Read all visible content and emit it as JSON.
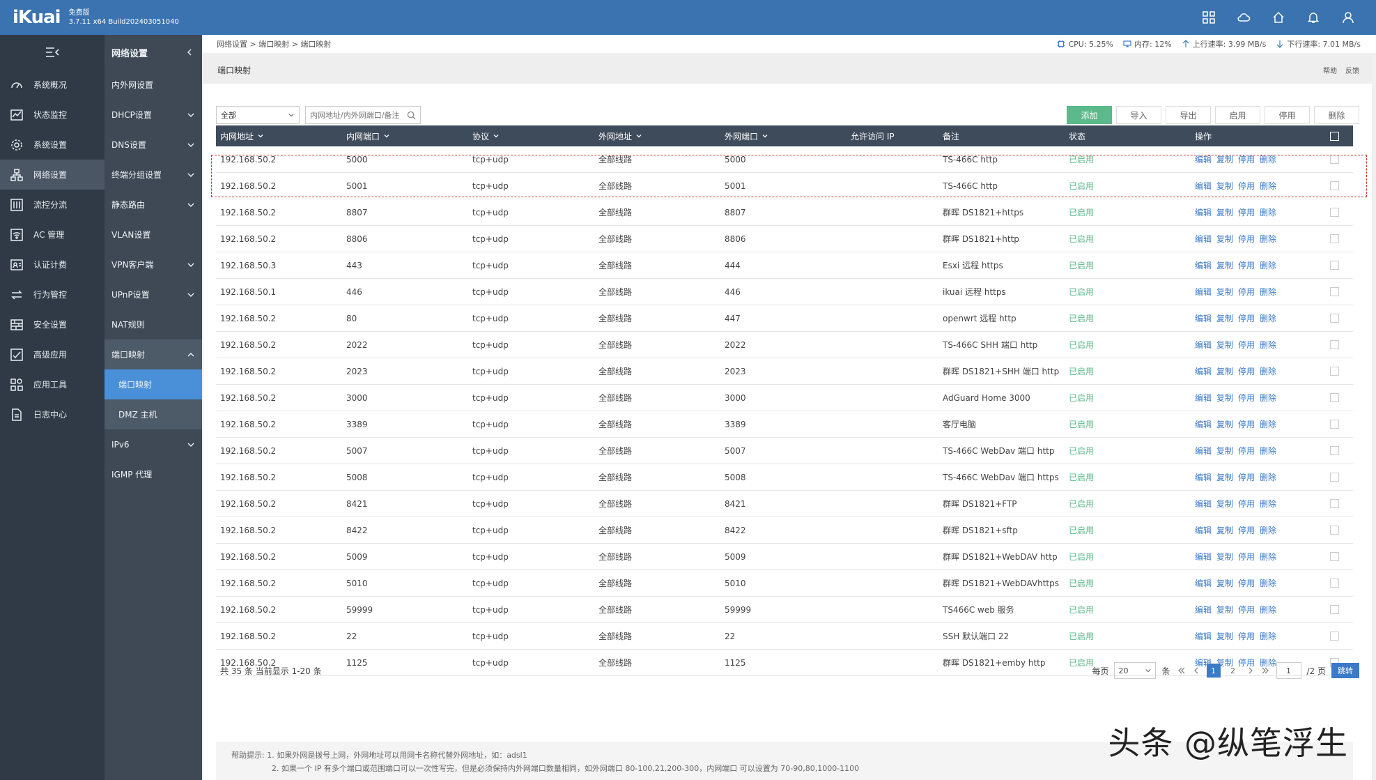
{
  "header": {
    "logo": "iKuai",
    "edition": "免费版",
    "version": "3.7.11 x64 Build202403051040",
    "icons": [
      "grid-icon",
      "cloud-icon",
      "home-icon",
      "bell-icon",
      "user-icon"
    ]
  },
  "sidebar": {
    "items": [
      {
        "label": "系统概况",
        "icon": "dashboard-icon"
      },
      {
        "label": "状态监控",
        "icon": "monitor-icon"
      },
      {
        "label": "系统设置",
        "icon": "gear-icon"
      },
      {
        "label": "网络设置",
        "icon": "network-icon"
      },
      {
        "label": "流控分流",
        "icon": "sliders-icon"
      },
      {
        "label": "AC 管理",
        "icon": "wifi-icon"
      },
      {
        "label": "认证计费",
        "icon": "id-card-icon"
      },
      {
        "label": "行为管控",
        "icon": "exchange-icon"
      },
      {
        "label": "安全设置",
        "icon": "firewall-icon"
      },
      {
        "label": "高级应用",
        "icon": "app-icon"
      },
      {
        "label": "应用工具",
        "icon": "tools-icon"
      },
      {
        "label": "日志中心",
        "icon": "log-icon"
      }
    ]
  },
  "subnav": {
    "title": "网络设置",
    "items": [
      {
        "label": "内外网设置"
      },
      {
        "label": "DHCP设置"
      },
      {
        "label": "DNS设置"
      },
      {
        "label": "终端分组设置"
      },
      {
        "label": "静态路由"
      },
      {
        "label": "VLAN设置"
      },
      {
        "label": "VPN客户端"
      },
      {
        "label": "UPnP设置"
      },
      {
        "label": "NAT规则"
      },
      {
        "label": "端口映射"
      },
      {
        "label": "端口映射"
      },
      {
        "label": "DMZ 主机"
      },
      {
        "label": "IPv6"
      },
      {
        "label": "IGMP 代理"
      }
    ]
  },
  "breadcrumb": "网络设置 > 端口映射 > 端口映射",
  "stats": {
    "cpu": "CPU: 5.25%",
    "mem": "内存: 12%",
    "up": "上行速率: 3.99 MB/s",
    "down": "下行速率: 7.01 MB/s"
  },
  "page": {
    "title": "端口映射",
    "help": "帮助",
    "feedback": "反馈"
  },
  "toolbar": {
    "filter_value": "全部",
    "search_placeholder": "内网地址/内外网端口/备注",
    "add": "添加",
    "import": "导入",
    "export": "导出",
    "enable": "启用",
    "disable": "停用",
    "delete": "删除"
  },
  "table": {
    "headers": [
      "内网地址",
      "内网端口",
      "协议",
      "外网地址",
      "外网端口",
      "允许访问 IP",
      "备注",
      "状态",
      "操作"
    ],
    "ops": [
      "编辑",
      "复制",
      "停用",
      "删除"
    ],
    "rows": [
      {
        "ip": "192.168.50.2",
        "lan_port": "5000",
        "proto": "tcp+udp",
        "wan": "全部线路",
        "wan_port": "5000",
        "allow": "",
        "note": "TS-466C http",
        "status": "已启用"
      },
      {
        "ip": "192.168.50.2",
        "lan_port": "5001",
        "proto": "tcp+udp",
        "wan": "全部线路",
        "wan_port": "5001",
        "allow": "",
        "note": "TS-466C http",
        "status": "已启用"
      },
      {
        "ip": "192.168.50.2",
        "lan_port": "8807",
        "proto": "tcp+udp",
        "wan": "全部线路",
        "wan_port": "8807",
        "allow": "",
        "note": "群晖 DS1821+https",
        "status": "已启用"
      },
      {
        "ip": "192.168.50.2",
        "lan_port": "8806",
        "proto": "tcp+udp",
        "wan": "全部线路",
        "wan_port": "8806",
        "allow": "",
        "note": "群晖 DS1821+http",
        "status": "已启用"
      },
      {
        "ip": "192.168.50.3",
        "lan_port": "443",
        "proto": "tcp+udp",
        "wan": "全部线路",
        "wan_port": "444",
        "allow": "",
        "note": "Esxi 远程 https",
        "status": "已启用"
      },
      {
        "ip": "192.168.50.1",
        "lan_port": "446",
        "proto": "tcp+udp",
        "wan": "全部线路",
        "wan_port": "446",
        "allow": "",
        "note": "ikuai 远程 https",
        "status": "已启用"
      },
      {
        "ip": "192.168.50.2",
        "lan_port": "80",
        "proto": "tcp+udp",
        "wan": "全部线路",
        "wan_port": "447",
        "allow": "",
        "note": "openwrt 远程 http",
        "status": "已启用"
      },
      {
        "ip": "192.168.50.2",
        "lan_port": "2022",
        "proto": "tcp+udp",
        "wan": "全部线路",
        "wan_port": "2022",
        "allow": "",
        "note": "TS-466C SHH 端口 http",
        "status": "已启用"
      },
      {
        "ip": "192.168.50.2",
        "lan_port": "2023",
        "proto": "tcp+udp",
        "wan": "全部线路",
        "wan_port": "2023",
        "allow": "",
        "note": "群晖 DS1821+SHH 端口 http",
        "status": "已启用"
      },
      {
        "ip": "192.168.50.2",
        "lan_port": "3000",
        "proto": "tcp+udp",
        "wan": "全部线路",
        "wan_port": "3000",
        "allow": "",
        "note": "AdGuard Home 3000",
        "status": "已启用"
      },
      {
        "ip": "192.168.50.2",
        "lan_port": "3389",
        "proto": "tcp+udp",
        "wan": "全部线路",
        "wan_port": "3389",
        "allow": "",
        "note": "客厅电脑",
        "status": "已启用"
      },
      {
        "ip": "192.168.50.2",
        "lan_port": "5007",
        "proto": "tcp+udp",
        "wan": "全部线路",
        "wan_port": "5007",
        "allow": "",
        "note": "TS-466C WebDav 端口 http",
        "status": "已启用"
      },
      {
        "ip": "192.168.50.2",
        "lan_port": "5008",
        "proto": "tcp+udp",
        "wan": "全部线路",
        "wan_port": "5008",
        "allow": "",
        "note": "TS-466C WebDav 端口 https",
        "status": "已启用"
      },
      {
        "ip": "192.168.50.2",
        "lan_port": "8421",
        "proto": "tcp+udp",
        "wan": "全部线路",
        "wan_port": "8421",
        "allow": "",
        "note": "群晖 DS1821+FTP",
        "status": "已启用"
      },
      {
        "ip": "192.168.50.2",
        "lan_port": "8422",
        "proto": "tcp+udp",
        "wan": "全部线路",
        "wan_port": "8422",
        "allow": "",
        "note": "群晖 DS1821+sftp",
        "status": "已启用"
      },
      {
        "ip": "192.168.50.2",
        "lan_port": "5009",
        "proto": "tcp+udp",
        "wan": "全部线路",
        "wan_port": "5009",
        "allow": "",
        "note": "群晖 DS1821+WebDAV http",
        "status": "已启用"
      },
      {
        "ip": "192.168.50.2",
        "lan_port": "5010",
        "proto": "tcp+udp",
        "wan": "全部线路",
        "wan_port": "5010",
        "allow": "",
        "note": "群晖 DS1821+WebDAVhttps",
        "status": "已启用"
      },
      {
        "ip": "192.168.50.2",
        "lan_port": "59999",
        "proto": "tcp+udp",
        "wan": "全部线路",
        "wan_port": "59999",
        "allow": "",
        "note": "TS466C web 服务",
        "status": "已启用"
      },
      {
        "ip": "192.168.50.2",
        "lan_port": "22",
        "proto": "tcp+udp",
        "wan": "全部线路",
        "wan_port": "22",
        "allow": "",
        "note": "SSH 默认端口 22",
        "status": "已启用"
      },
      {
        "ip": "192.168.50.2",
        "lan_port": "1125",
        "proto": "tcp+udp",
        "wan": "全部线路",
        "wan_port": "1125",
        "allow": "",
        "note": "群晖 DS1821+emby http",
        "status": "已启用"
      }
    ]
  },
  "footer": {
    "summary": "共 35 条 当前显示 1-20 条",
    "per_page_label": "每页",
    "per_page_value": "20",
    "per_page_unit": "条",
    "pages": [
      "1",
      "2"
    ],
    "current_page": "1",
    "goto_value": "1",
    "total_pages": "/2 页",
    "jump": "跳转"
  },
  "help": {
    "line1": "帮助提示: 1. 如果外网是拨号上网，外网地址可以用网卡名称代替外网地址，如：adsl1",
    "line2": "2. 如果一个 IP 有多个端口或范围端口可以一次性写完，但是必须保持内外网端口数量相同，如外网端口 80-100,21,200-300，内网端口 可以设置为 70-90,80,1000-1100"
  },
  "watermark": "头条 @纵笔浮生",
  "colors": {
    "header": "#3a73b0",
    "sidebar": "#2f3a46",
    "subnav": "#3e4955",
    "accent": "#4a90d9",
    "enabled": "#5cb98b",
    "link": "#3a7ac8"
  }
}
